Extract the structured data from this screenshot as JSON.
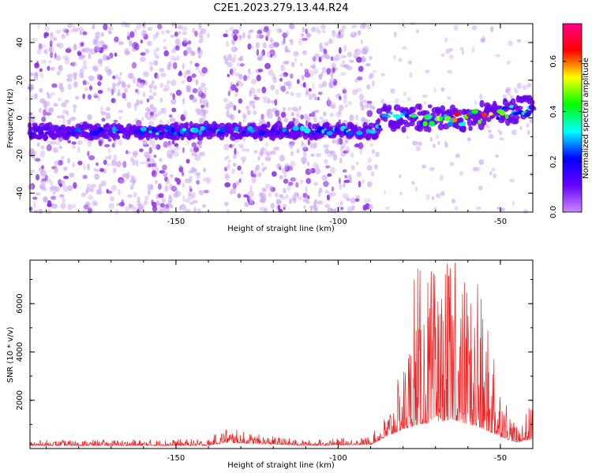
{
  "title": "C2E1.2023.279.13.44.R24",
  "colors": {
    "snr_line": "#ee2222",
    "axis": "#000000"
  },
  "chart_data": [
    {
      "type": "heatmap",
      "xlabel": "Height of straight line (km)",
      "ylabel": "Frequency (Hz)",
      "xlim": [
        -195,
        -40
      ],
      "ylim": [
        -50,
        50
      ],
      "x_ticks": [
        -150,
        -100,
        -50
      ],
      "y_ticks": [
        -40,
        -20,
        0,
        20,
        40
      ],
      "colorbar": {
        "label": "Normalized spectral amplitude",
        "range": [
          0,
          0.75
        ],
        "ticks": [
          0.0,
          0.2,
          0.4,
          0.6
        ],
        "colormap": [
          "#cc88ff",
          "#6600ff",
          "#0000ff",
          "#00ffff",
          "#00ff00",
          "#ffff00",
          "#ff0000",
          "#ff0088"
        ]
      },
      "ridge": [
        {
          "x": -195,
          "f": -7,
          "amp": 0.15
        },
        {
          "x": -175,
          "f": -7,
          "amp": 0.25
        },
        {
          "x": -160,
          "f": -7,
          "amp": 0.28
        },
        {
          "x": -140,
          "f": -7,
          "amp": 0.3
        },
        {
          "x": -120,
          "f": -7,
          "amp": 0.25
        },
        {
          "x": -100,
          "f": -7,
          "amp": 0.3
        },
        {
          "x": -88,
          "f": -7,
          "amp": 0.28
        },
        {
          "x": -87,
          "f": 0,
          "amp": 0.25
        },
        {
          "x": -75,
          "f": 0,
          "amp": 0.35
        },
        {
          "x": -60,
          "f": 0,
          "amp": 0.6
        },
        {
          "x": -50,
          "f": 3,
          "amp": 0.45
        },
        {
          "x": -42,
          "f": 5,
          "amp": 0.3
        }
      ],
      "background_noise_bands": [
        [
          -195,
          -140
        ],
        [
          -135,
          -105
        ],
        [
          -105,
          -90
        ]
      ]
    },
    {
      "type": "line",
      "xlabel": "Height of straight line (km)",
      "ylabel": "SNR (10 * v/v)",
      "xlim": [
        -195,
        -40
      ],
      "ylim": [
        0,
        7800
      ],
      "x_ticks": [
        -150,
        -100,
        -50
      ],
      "y_ticks": [
        2000,
        4000,
        6000
      ],
      "envelope": [
        {
          "x": -195,
          "base": 120,
          "peak": 350
        },
        {
          "x": -140,
          "base": 120,
          "peak": 400
        },
        {
          "x": -135,
          "base": 250,
          "peak": 900
        },
        {
          "x": -125,
          "base": 200,
          "peak": 600
        },
        {
          "x": -110,
          "base": 130,
          "peak": 350
        },
        {
          "x": -90,
          "base": 160,
          "peak": 500
        },
        {
          "x": -85,
          "base": 500,
          "peak": 1500
        },
        {
          "x": -80,
          "base": 800,
          "peak": 3500
        },
        {
          "x": -75,
          "base": 1000,
          "peak": 7500
        },
        {
          "x": -65,
          "base": 1200,
          "peak": 7700
        },
        {
          "x": -57,
          "base": 900,
          "peak": 6800
        },
        {
          "x": -50,
          "base": 500,
          "peak": 3000
        },
        {
          "x": -45,
          "base": 250,
          "peak": 900
        },
        {
          "x": -40,
          "base": 400,
          "peak": 2000
        }
      ],
      "peaks": [
        {
          "x": -76.5,
          "y": 7000
        },
        {
          "x": -75.5,
          "y": 7450
        },
        {
          "x": -69,
          "y": 5500
        },
        {
          "x": -67.5,
          "y": 5300
        },
        {
          "x": -66,
          "y": 7100
        },
        {
          "x": -64,
          "y": 7700
        },
        {
          "x": -60,
          "y": 5500
        },
        {
          "x": -57,
          "y": 6800
        },
        {
          "x": -52,
          "y": 3700
        }
      ]
    }
  ]
}
